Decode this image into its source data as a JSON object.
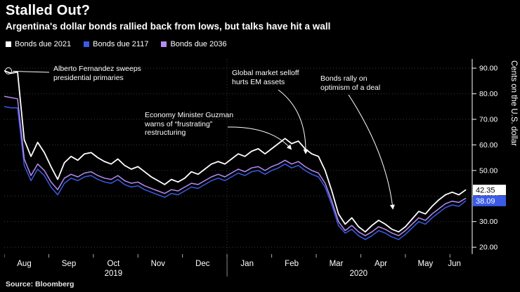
{
  "header": {
    "title": "Stalled Out?",
    "subtitle": "Argentina's dollar bonds rallied back from lows, but talks have hit a wall"
  },
  "legend": [
    {
      "label": "Bonds due 2021",
      "color": "#ffffff"
    },
    {
      "label": "Bonds due 2117",
      "color": "#3a5be8"
    },
    {
      "label": "Bonds due 2036",
      "color": "#b78cf0"
    }
  ],
  "axis": {
    "y_title": "Cents on the U.S. dollar",
    "months": [
      {
        "label": "Aug",
        "t": 0.45
      },
      {
        "label": "Sep",
        "t": 1.45
      },
      {
        "label": "Oct",
        "t": 2.45
      },
      {
        "label": "Nov",
        "t": 3.45
      },
      {
        "label": "Dec",
        "t": 4.45
      },
      {
        "label": "Jan",
        "t": 5.45
      },
      {
        "label": "Feb",
        "t": 6.45
      },
      {
        "label": "Mar",
        "t": 7.45
      },
      {
        "label": "Apr",
        "t": 8.45
      },
      {
        "label": "May",
        "t": 9.45
      },
      {
        "label": "Jun",
        "t": 10.1
      }
    ],
    "years": [
      {
        "label": "2019",
        "t": 2.45
      },
      {
        "label": "2020",
        "t": 7.95
      }
    ]
  },
  "annotations": [
    {
      "id": "primaries",
      "text": "Alberto Fernandez sweeps presidential primaries"
    },
    {
      "id": "guzman",
      "text": "Economy Minister Guzman warns of “frustrating” restructuring"
    },
    {
      "id": "selloff",
      "text": "Global market selloff hurts EM assets"
    },
    {
      "id": "rally",
      "text": "Bonds rally on optimism of a deal"
    }
  ],
  "end_labels": [
    {
      "value": "42.35",
      "price": 42.35,
      "bg": "#ffffff",
      "fg": "#000000"
    },
    {
      "value": "38.09",
      "price": 38.09,
      "bg": "#3a5be8",
      "fg": "#ffffff"
    }
  ],
  "source": "Source: Bloomberg",
  "chart_data": {
    "type": "line",
    "title": "Stalled Out?",
    "xlabel": "Aug 2019 - Jun 2020",
    "ylabel": "Cents on the U.S. dollar",
    "x_unit": "months since Aug 1 2019",
    "x_step": 0.15,
    "x_max": 10.5,
    "ylim": [
      17.3,
      93.6
    ],
    "y_ticks": [
      20,
      30,
      40,
      50,
      60,
      70,
      80,
      90
    ],
    "y_tick_labels": [
      "20.00",
      "30.00",
      "40.00",
      "50.00",
      "60.00",
      "70.00",
      "80.00",
      "90.00"
    ],
    "year_divider_t": 5,
    "grid": "dotted",
    "legend_position": "top-left",
    "series": [
      {
        "name": "Bonds due 2021",
        "color": "#ffffff",
        "width": 1.8,
        "last_value": 42.35,
        "values": [
          89,
          88,
          88.5,
          62,
          55.5,
          61,
          57,
          51.5,
          46.5,
          53,
          55.5,
          54,
          56.5,
          57,
          55,
          53.5,
          52.5,
          54.5,
          52,
          50.5,
          51.5,
          49.5,
          47.5,
          46,
          44.5,
          46.5,
          45.5,
          47,
          49.5,
          48.5,
          50.5,
          52.5,
          53.5,
          52.5,
          54.5,
          56.5,
          55.5,
          57.5,
          58.5,
          56.5,
          58.5,
          60.5,
          62.5,
          60.5,
          61.5,
          58.5,
          56.5,
          55.5,
          50,
          42,
          33,
          29,
          31.5,
          28,
          26,
          28.5,
          30.5,
          29,
          27,
          26,
          28,
          31,
          34,
          33,
          36,
          38.5,
          40.5,
          41.5,
          40.5,
          42.35
        ]
      },
      {
        "name": "Bonds due 2117",
        "color": "#3a5be8",
        "width": 1.5,
        "last_value": 38.09,
        "values": [
          75,
          74.5,
          74.5,
          52,
          46,
          50.5,
          48,
          43.5,
          40.5,
          45,
          47,
          46,
          47.5,
          48,
          46.5,
          45.5,
          45,
          46.5,
          44.5,
          43.5,
          44,
          42.5,
          41.5,
          40.5,
          39.5,
          41,
          40.5,
          42,
          43.5,
          43,
          44.5,
          46,
          47,
          46,
          47.5,
          49,
          48,
          49.5,
          50,
          48.5,
          50,
          51,
          52.5,
          51,
          52,
          50,
          48.5,
          47.5,
          43.5,
          36.5,
          28.5,
          25.5,
          27,
          24.5,
          23,
          24.5,
          26.5,
          25.5,
          24,
          23,
          25,
          27.5,
          30,
          29,
          31.5,
          33.5,
          35.5,
          36.5,
          36,
          38.09
        ]
      },
      {
        "name": "Bonds due 2036",
        "color": "#b78cf0",
        "width": 1.5,
        "last_value": 39.1,
        "values": [
          79,
          78.5,
          78,
          54.5,
          48,
          52.5,
          50,
          45.5,
          42.5,
          47,
          48.5,
          47.5,
          49,
          49.5,
          48,
          47,
          46.5,
          48,
          46,
          45,
          45.5,
          44,
          43,
          42,
          41,
          42.5,
          42,
          43.5,
          45,
          44.5,
          46,
          47.5,
          48.5,
          47.5,
          49,
          50.5,
          49.5,
          51,
          51.5,
          50,
          51.5,
          52.5,
          54,
          52.5,
          53.5,
          51.5,
          50,
          49,
          45,
          38,
          30,
          26.5,
          28.5,
          26,
          24.5,
          26,
          28,
          27,
          25.5,
          24.5,
          26.5,
          29,
          31.5,
          30.5,
          33,
          35,
          37,
          38,
          37.5,
          39.1
        ]
      }
    ]
  }
}
